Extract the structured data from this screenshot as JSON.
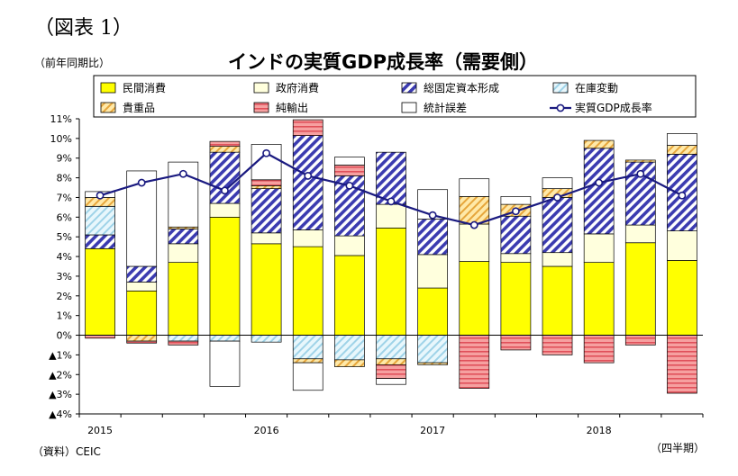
{
  "figure_label": "（図表 1）",
  "unit_label": "（前年同期比）",
  "source_label": "（資料）CEIC",
  "x_unit_label": "（四半期）",
  "chart_data": {
    "type": "bar",
    "stacked": true,
    "title": "インドの実質GDP成長率（需要側）",
    "ylim": [
      -4,
      11
    ],
    "y_ticks": [
      {
        "value": 11,
        "label": "11%"
      },
      {
        "value": 10,
        "label": "10%"
      },
      {
        "value": 9,
        "label": "9%"
      },
      {
        "value": 8,
        "label": "8%"
      },
      {
        "value": 7,
        "label": "7%"
      },
      {
        "value": 6,
        "label": "6%"
      },
      {
        "value": 5,
        "label": "5%"
      },
      {
        "value": 4,
        "label": "4%"
      },
      {
        "value": 3,
        "label": "3%"
      },
      {
        "value": 2,
        "label": "2%"
      },
      {
        "value": 1,
        "label": "1%"
      },
      {
        "value": 0,
        "label": "0%"
      },
      {
        "value": -1,
        "label": "▲1%"
      },
      {
        "value": -2,
        "label": "▲2%"
      },
      {
        "value": -3,
        "label": "▲3%"
      },
      {
        "value": -4,
        "label": "▲4%"
      }
    ],
    "x_tick_labels": [
      {
        "index": 0,
        "label": "2015"
      },
      {
        "index": 4,
        "label": "2016"
      },
      {
        "index": 8,
        "label": "2017"
      },
      {
        "index": 12,
        "label": "2018"
      }
    ],
    "num_quarters": 15,
    "legend_position": "top",
    "series": [
      {
        "name": "民間消費",
        "color": "#ffff00",
        "pattern": "solid",
        "values": [
          4.4,
          2.25,
          3.7,
          6.0,
          4.65,
          4.5,
          4.05,
          5.45,
          2.4,
          3.75,
          3.7,
          3.5,
          3.7,
          4.7,
          3.8
        ]
      },
      {
        "name": "政府消費",
        "color": "#ffffdd",
        "pattern": "solid",
        "values": [
          0.0,
          0.45,
          0.95,
          0.7,
          0.55,
          0.85,
          1.0,
          1.2,
          1.7,
          1.9,
          0.45,
          0.7,
          1.45,
          0.9,
          1.5
        ]
      },
      {
        "name": "総固定資本形成",
        "color": "#3b3bb0",
        "pattern": "hatch",
        "values": [
          0.7,
          0.8,
          0.75,
          2.6,
          2.25,
          4.8,
          3.05,
          2.65,
          1.8,
          0.0,
          1.9,
          2.8,
          4.35,
          3.2,
          3.9
        ]
      },
      {
        "name": "在庫変動",
        "color": "#bfe6f2",
        "pattern": "hatch-light",
        "values": [
          1.45,
          0.0,
          -0.3,
          -0.3,
          -0.35,
          -1.2,
          -1.25,
          -1.2,
          -1.4,
          0.0,
          0.0,
          0.0,
          0.0,
          0.0,
          0.0
        ]
      },
      {
        "name": "貴重品",
        "color": "#ffdd88",
        "pattern": "hatch-gold",
        "values": [
          0.45,
          -0.3,
          0.1,
          0.3,
          0.15,
          -0.2,
          -0.35,
          -0.3,
          -0.1,
          1.4,
          0.6,
          0.45,
          0.4,
          0.1,
          0.45
        ]
      },
      {
        "name": "純輸出",
        "color": "#f08080",
        "pattern": "hatch-red",
        "values": [
          -0.15,
          -0.1,
          -0.2,
          0.25,
          0.3,
          0.8,
          0.55,
          -0.7,
          0.0,
          -2.7,
          -0.75,
          -1.0,
          -1.4,
          -0.5,
          -2.95
        ]
      },
      {
        "name": "統計誤差",
        "color": "#ffffff",
        "pattern": "solid",
        "values": [
          0.3,
          4.85,
          3.3,
          -2.3,
          1.8,
          -1.4,
          0.4,
          -0.3,
          1.5,
          0.9,
          0.4,
          0.55,
          0.0,
          0.0,
          0.6
        ]
      }
    ],
    "line": {
      "name": "実質GDP成長率",
      "color": "#1a1a80",
      "values": [
        7.1,
        7.75,
        8.2,
        7.35,
        9.25,
        8.1,
        7.6,
        6.8,
        6.1,
        5.6,
        6.3,
        7.0,
        7.75,
        8.2,
        7.1
      ]
    }
  }
}
